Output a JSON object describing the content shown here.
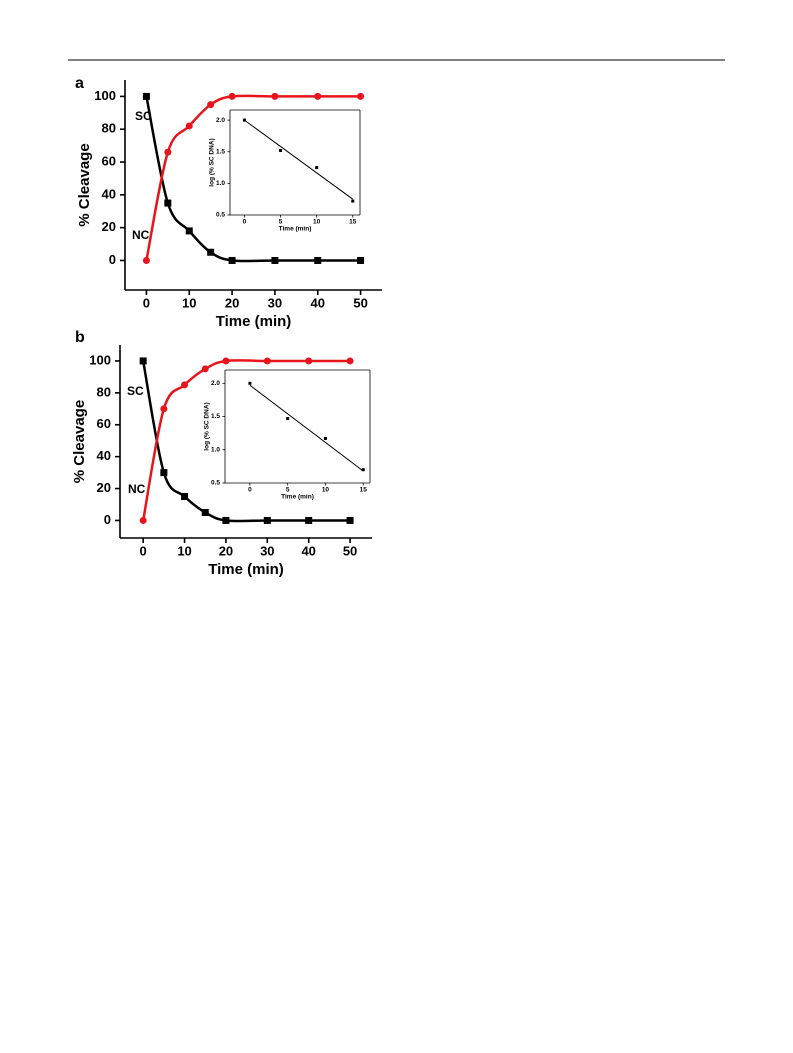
{
  "chart_data": [
    {
      "type": "line",
      "label": "a",
      "x_label": "Time (min)",
      "y_label": "% Cleavage",
      "x": [
        0,
        5,
        10,
        15,
        20,
        30,
        40,
        50
      ],
      "series": [
        {
          "name": "SC",
          "color": "#000000",
          "marker": "square",
          "values": [
            100,
            35,
            18,
            5,
            0,
            0,
            0,
            0
          ]
        },
        {
          "name": "NC",
          "color": "#e8141b",
          "marker": "circle",
          "values": [
            0,
            66,
            82,
            95,
            100,
            100,
            100,
            100
          ]
        }
      ],
      "xlim": [
        -5,
        55
      ],
      "xticks": [
        0,
        10,
        20,
        30,
        40,
        50
      ],
      "ylim": [
        -18,
        110
      ],
      "yticks": [
        0,
        20,
        40,
        60,
        80,
        100
      ]
    },
    {
      "type": "scatter",
      "x_label": "Time (min)",
      "y_label": "log (% SC DNA)",
      "x": [
        0,
        5,
        10,
        15
      ],
      "series": [
        {
          "color": "#000000",
          "values": [
            2.0,
            1.52,
            1.25,
            0.72
          ]
        }
      ],
      "fit": {
        "x": [
          0,
          15
        ],
        "values": [
          2.0,
          0.75
        ]
      },
      "xlim": [
        -2,
        16
      ],
      "xticks": [
        0,
        5,
        10,
        15
      ],
      "ylim": [
        0.5,
        2.16
      ],
      "yticks": [
        0.5,
        {
          "value": 1,
          "label": "1.0"
        },
        1.5,
        {
          "value": 2,
          "label": "2.0"
        }
      ]
    },
    {
      "type": "line",
      "label": "b",
      "x_label": "Time (min)",
      "y_label": "% Cleavage",
      "x": [
        0,
        5,
        10,
        15,
        20,
        30,
        40,
        50
      ],
      "series": [
        {
          "name": "SC",
          "color": "#000000",
          "marker": "square",
          "values": [
            100,
            30,
            15,
            5,
            0,
            0,
            0,
            0
          ]
        },
        {
          "name": "NC",
          "color": "#e8141b",
          "marker": "circle",
          "values": [
            0,
            70,
            85,
            95,
            100,
            100,
            100,
            100
          ]
        }
      ],
      "xlim": [
        -5.6,
        55.3
      ],
      "xticks": [
        0,
        10,
        20,
        30,
        40,
        50
      ],
      "ylim": [
        -11,
        110
      ],
      "yticks": [
        0,
        20,
        40,
        60,
        80,
        100
      ]
    },
    {
      "type": "scatter",
      "x_label": "Time (min)",
      "y_label": "log (% SC DNA)",
      "x": [
        0,
        5,
        10,
        15
      ],
      "series": [
        {
          "color": "#000000",
          "values": [
            2.0,
            1.47,
            1.17,
            0.7
          ]
        }
      ],
      "fit": {
        "x": [
          0,
          15
        ],
        "values": [
          1.97,
          0.68
        ]
      },
      "xlim": [
        -3.3,
        15.9
      ],
      "xticks": [
        0,
        5,
        10,
        15
      ],
      "ylim": [
        0.5,
        2.2
      ],
      "yticks": [
        0.5,
        {
          "value": 1,
          "label": "1.0"
        },
        1.5,
        {
          "value": 2,
          "label": "2.0"
        }
      ]
    }
  ]
}
